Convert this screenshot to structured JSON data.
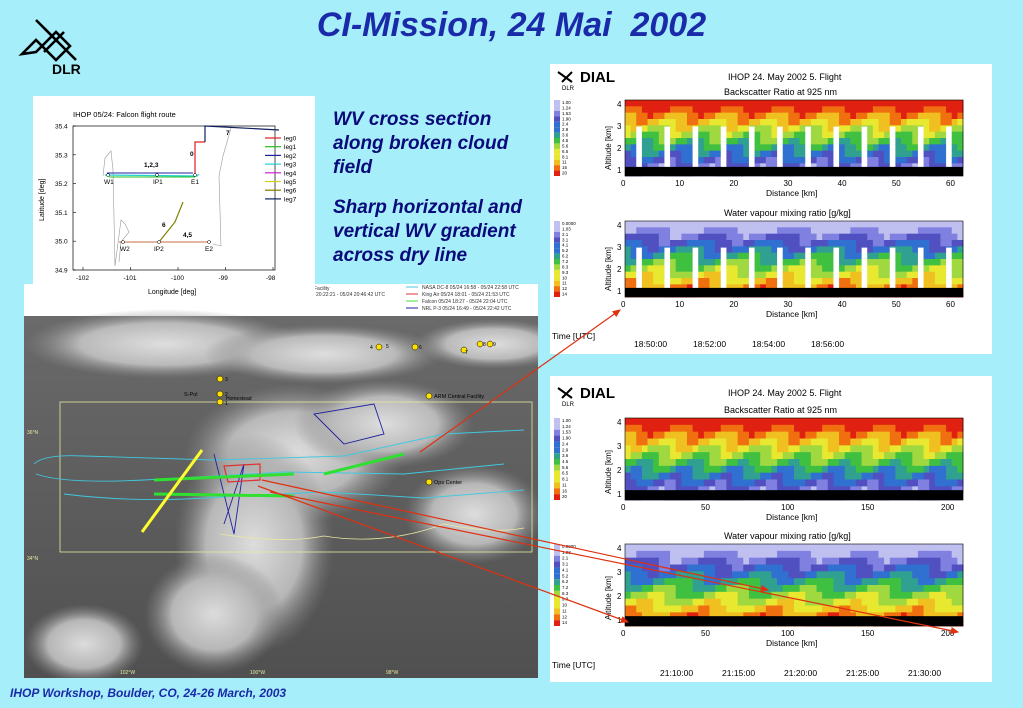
{
  "title": "CI-Mission, 24 Mai  2002",
  "logo_text": "DLR",
  "footer": "IHOP Workshop, Boulder, CO, 24-26 March, 2003",
  "notes": {
    "note1": "WV cross section along broken cloud field",
    "note2": "Sharp horizontal and vertical WV gradient across dry line"
  },
  "flight_plot": {
    "title": "IHOP 05/24: Falcon flight route",
    "xlabel": "Longitude [deg]",
    "ylabel": "Latitude [deg]",
    "xticks": [
      "-102",
      "-101",
      "-100",
      "-99",
      "-98"
    ],
    "yticks": [
      "35.4",
      "35.3",
      "35.2",
      "35.1",
      "35.0",
      "34.9"
    ],
    "legend": [
      "leg0",
      "leg1",
      "leg2",
      "leg3",
      "leg4",
      "leg5",
      "leg6",
      "leg7"
    ],
    "legend_colors": [
      "#e02020",
      "#20c020",
      "#2020a0",
      "#20d0d0",
      "#d020d0",
      "#d0d020",
      "#808000",
      "#102060"
    ],
    "labels": {
      "l0": "0",
      "l7": "7",
      "l123": "1,2,3",
      "l6": "6",
      "l45": "4,5",
      "w1": "W1",
      "ip1": "IP1",
      "e1": "E1",
      "w2": "W2",
      "ip2": "IP2",
      "e2": "E2"
    }
  },
  "satellite": {
    "legend_lines": [
      "NASA DC-8 05/24 16:58 - 05/24 22:58 UTC",
      "King Air 05/24 18:01 - 05/24 21:53 UTC",
      "Falcon 05/24 18:27 - 05/24 22:04 UTC",
      "NRL P-3 05/24 16:49 - 05/24 22:42 UTC"
    ],
    "legend_colors": [
      "#40c8e0",
      "#e03030",
      "#40e040",
      "#2020a0"
    ],
    "header_left": [
      "Facility",
      "20:22:21 - 05/24 20:46:42 UTC"
    ],
    "places": {
      "spol": "S-Pol",
      "homestead": "Homestead",
      "arm": "ARM Central Facility",
      "ops": "Ops Center"
    },
    "lat_labels": [
      "36°N",
      "34°N"
    ],
    "lon_labels": [
      "102°W",
      "100°W",
      "98°W"
    ],
    "site_numbers": [
      "3",
      "2",
      "1",
      "4",
      "5",
      "6",
      "7",
      "8",
      "9"
    ]
  },
  "dial1": {
    "brand": "DIAL",
    "sub": "DLR",
    "header": "IHOP  24. May 2002   5. Flight",
    "bsr_title": "Backscatter Ratio at 925 nm",
    "wv_title": "Water vapour mixing ratio [g/kg]",
    "ylabel": "Altitude [km]",
    "xlabel": "Distance [km]",
    "xticks": [
      "0",
      "10",
      "20",
      "30",
      "40",
      "50",
      "60"
    ],
    "yticks": [
      "4",
      "3",
      "2",
      "1"
    ],
    "time_label": "Time [UTC]",
    "times": [
      "18:50:00",
      "18:52:00",
      "18:54:00",
      "18:56:00"
    ],
    "bsr_scale": [
      "1.00",
      "1.24",
      "1.53",
      "1.90",
      "2.4",
      "2.9",
      "3.6",
      "4.5",
      "5.6",
      "6.5",
      "8.1",
      "11",
      "16",
      "20"
    ],
    "wv_scale": [
      "0.0000",
      "1.03",
      "2.1",
      "3.1",
      "4.1",
      "5.2",
      "6.2",
      "7.2",
      "8.3",
      "9.3",
      "10",
      "11",
      "12",
      "14"
    ]
  },
  "dial2": {
    "brand": "DIAL",
    "sub": "DLR",
    "header": "IHOP  24. May 2002   5. Flight",
    "bsr_title": "Backscatter Ratio at 925 nm",
    "wv_title": "Water vapour mixing ratio [g/kg]",
    "ylabel": "Altitude [km]",
    "xlabel": "Distance [km]",
    "xticks": [
      "0",
      "50",
      "100",
      "150",
      "200"
    ],
    "yticks": [
      "4",
      "3",
      "2",
      "1"
    ],
    "time_label": "Time [UTC]",
    "times": [
      "21:10:00",
      "21:15:00",
      "21:20:00",
      "21:25:00",
      "21:30:00"
    ],
    "bsr_scale": [
      "1.00",
      "1.24",
      "1.53",
      "1.90",
      "2.4",
      "2.9",
      "3.6",
      "4.5",
      "5.6",
      "6.5",
      "8.1",
      "11",
      "16",
      "20"
    ],
    "wv_scale": [
      "0.0000",
      "1.03",
      "2.1",
      "3.1",
      "4.1",
      "5.2",
      "6.2",
      "7.2",
      "8.3",
      "9.3",
      "10",
      "11",
      "12",
      "14"
    ]
  }
}
